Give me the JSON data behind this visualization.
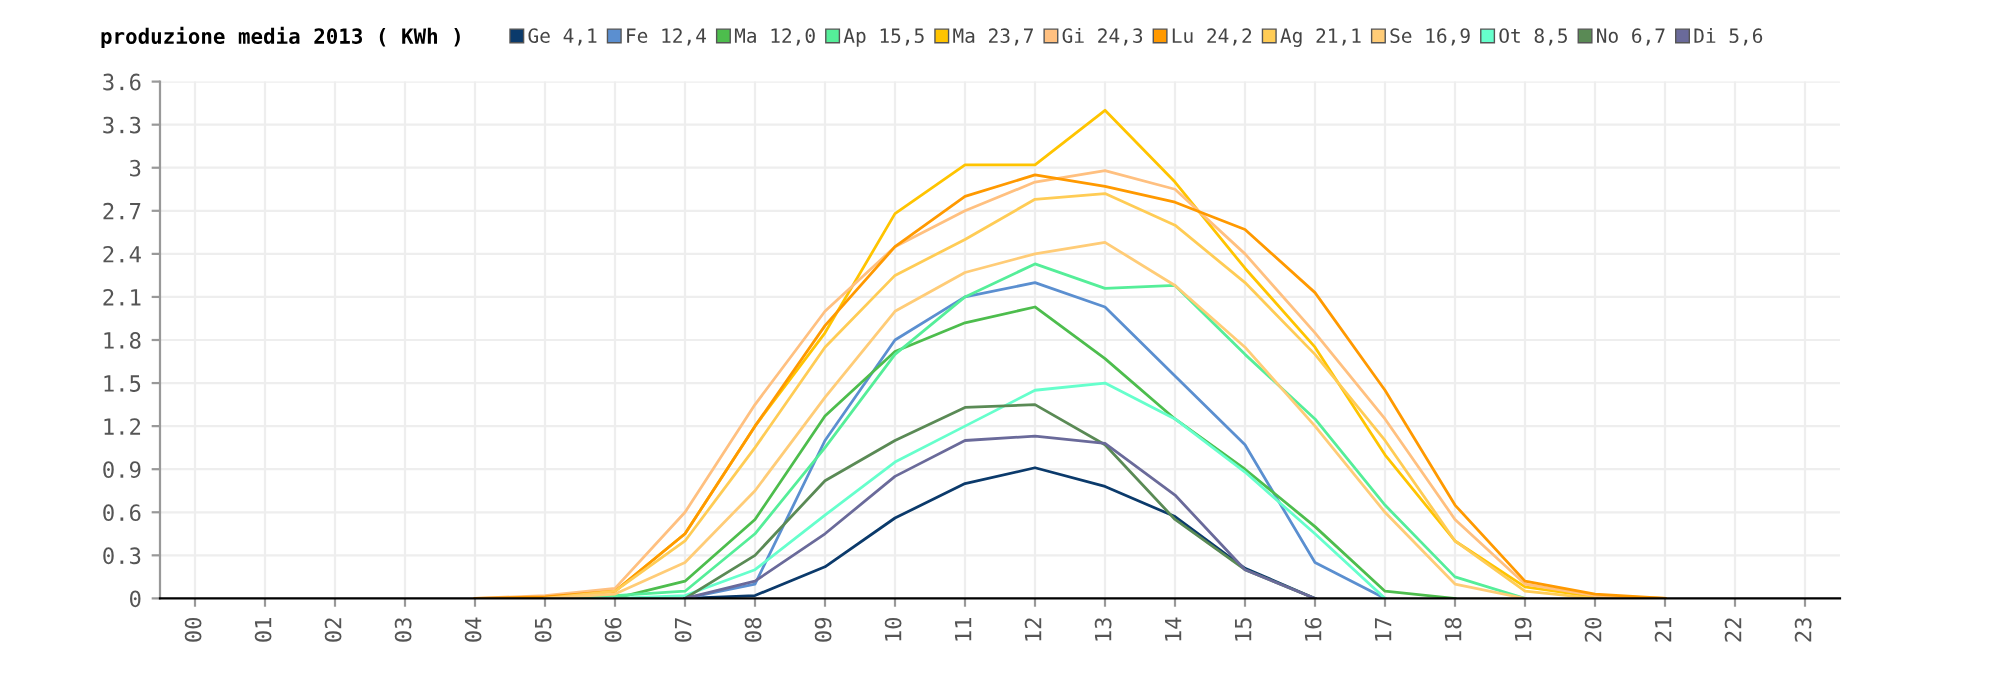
{
  "chart_data": {
    "type": "line",
    "title": "produzione media 2013 ( KWh )",
    "categories": [
      "00",
      "01",
      "02",
      "03",
      "04",
      "05",
      "06",
      "07",
      "08",
      "09",
      "10",
      "11",
      "12",
      "13",
      "14",
      "15",
      "16",
      "17",
      "18",
      "19",
      "20",
      "21",
      "22",
      "23"
    ],
    "series": [
      {
        "name": "Ge 4,1",
        "color": "#0b3a6b",
        "values": [
          null,
          null,
          null,
          null,
          null,
          null,
          null,
          0,
          0.02,
          0.22,
          0.56,
          0.8,
          0.91,
          0.78,
          0.57,
          0.21,
          0,
          null,
          null,
          null,
          null,
          null,
          null,
          null
        ]
      },
      {
        "name": "Fe 12,4",
        "color": "#5b8fd0",
        "values": [
          null,
          null,
          null,
          null,
          null,
          null,
          null,
          0,
          0.1,
          1.1,
          1.8,
          2.1,
          2.2,
          2.03,
          1.55,
          1.07,
          0.25,
          0,
          null,
          null,
          null,
          null,
          null,
          null
        ]
      },
      {
        "name": "Ma 12,0",
        "color": "#4dbd4d",
        "values": [
          null,
          null,
          null,
          null,
          null,
          null,
          0,
          0.12,
          0.55,
          1.27,
          1.72,
          1.92,
          2.03,
          1.67,
          1.25,
          0.9,
          0.5,
          0.05,
          0,
          null,
          null,
          null,
          null,
          null
        ]
      },
      {
        "name": "Ap 15,5",
        "color": "#55ee99",
        "values": [
          null,
          null,
          null,
          null,
          null,
          0,
          0.02,
          0.05,
          0.45,
          1.05,
          1.7,
          2.1,
          2.33,
          2.16,
          2.18,
          1.7,
          1.25,
          0.65,
          0.15,
          0,
          null,
          null,
          null,
          null
        ]
      },
      {
        "name": "Ma 23,7",
        "color": "#ffc400",
        "values": [
          null,
          null,
          null,
          null,
          null,
          0,
          0.05,
          0.45,
          1.2,
          1.85,
          2.68,
          3.02,
          3.02,
          3.4,
          2.9,
          2.3,
          1.75,
          1.0,
          0.4,
          0.08,
          0.01,
          0,
          null,
          null
        ]
      },
      {
        "name": "Gi 24,3",
        "color": "#ffc080",
        "values": [
          null,
          null,
          null,
          null,
          0,
          0.02,
          0.07,
          0.6,
          1.35,
          2.0,
          2.45,
          2.7,
          2.9,
          2.98,
          2.85,
          2.4,
          1.85,
          1.25,
          0.55,
          0.1,
          0.02,
          0,
          null,
          null
        ]
      },
      {
        "name": "Lu 24,2",
        "color": "#ff9900",
        "values": [
          null,
          null,
          null,
          null,
          0,
          0.01,
          0.05,
          0.45,
          1.2,
          1.9,
          2.45,
          2.8,
          2.95,
          2.87,
          2.76,
          2.57,
          2.13,
          1.45,
          0.65,
          0.12,
          0.03,
          0,
          null,
          null
        ]
      },
      {
        "name": "Ag 21,1",
        "color": "#ffcc55",
        "values": [
          null,
          null,
          null,
          null,
          null,
          0,
          0.05,
          0.4,
          1.05,
          1.75,
          2.25,
          2.5,
          2.78,
          2.82,
          2.6,
          2.2,
          1.7,
          1.1,
          0.4,
          0.05,
          0,
          null,
          null,
          null
        ]
      },
      {
        "name": "Se 16,9",
        "color": "#ffcc77",
        "values": [
          null,
          null,
          null,
          null,
          null,
          0,
          0.03,
          0.25,
          0.75,
          1.4,
          2.0,
          2.27,
          2.4,
          2.48,
          2.18,
          1.75,
          1.2,
          0.6,
          0.1,
          0,
          null,
          null,
          null,
          null
        ]
      },
      {
        "name": "Ot 8,5",
        "color": "#66ffcc",
        "values": [
          null,
          null,
          null,
          null,
          null,
          null,
          0,
          0.02,
          0.2,
          0.58,
          0.95,
          1.2,
          1.45,
          1.5,
          1.25,
          0.88,
          0.45,
          0,
          null,
          null,
          null,
          null,
          null,
          null
        ]
      },
      {
        "name": "No 6,7",
        "color": "#5a8a55",
        "values": [
          null,
          null,
          null,
          null,
          null,
          null,
          null,
          0,
          0.3,
          0.82,
          1.1,
          1.33,
          1.35,
          1.07,
          0.55,
          0.2,
          0,
          null,
          null,
          null,
          null,
          null,
          null,
          null
        ]
      },
      {
        "name": "Di 5,6",
        "color": "#6a6a9a",
        "values": [
          null,
          null,
          null,
          null,
          null,
          null,
          null,
          0,
          0.12,
          0.45,
          0.85,
          1.1,
          1.13,
          1.08,
          0.72,
          0.2,
          0,
          null,
          null,
          null,
          null,
          null,
          null,
          null
        ]
      }
    ],
    "ylim": [
      0,
      3.6
    ],
    "yticks": [
      0,
      0.3,
      0.6,
      0.9,
      1.2,
      1.5,
      1.8,
      2.1,
      2.4,
      2.7,
      3,
      3.3,
      3.6
    ],
    "grid": true,
    "legend": "top",
    "marker": "none",
    "line_style": "solid"
  }
}
